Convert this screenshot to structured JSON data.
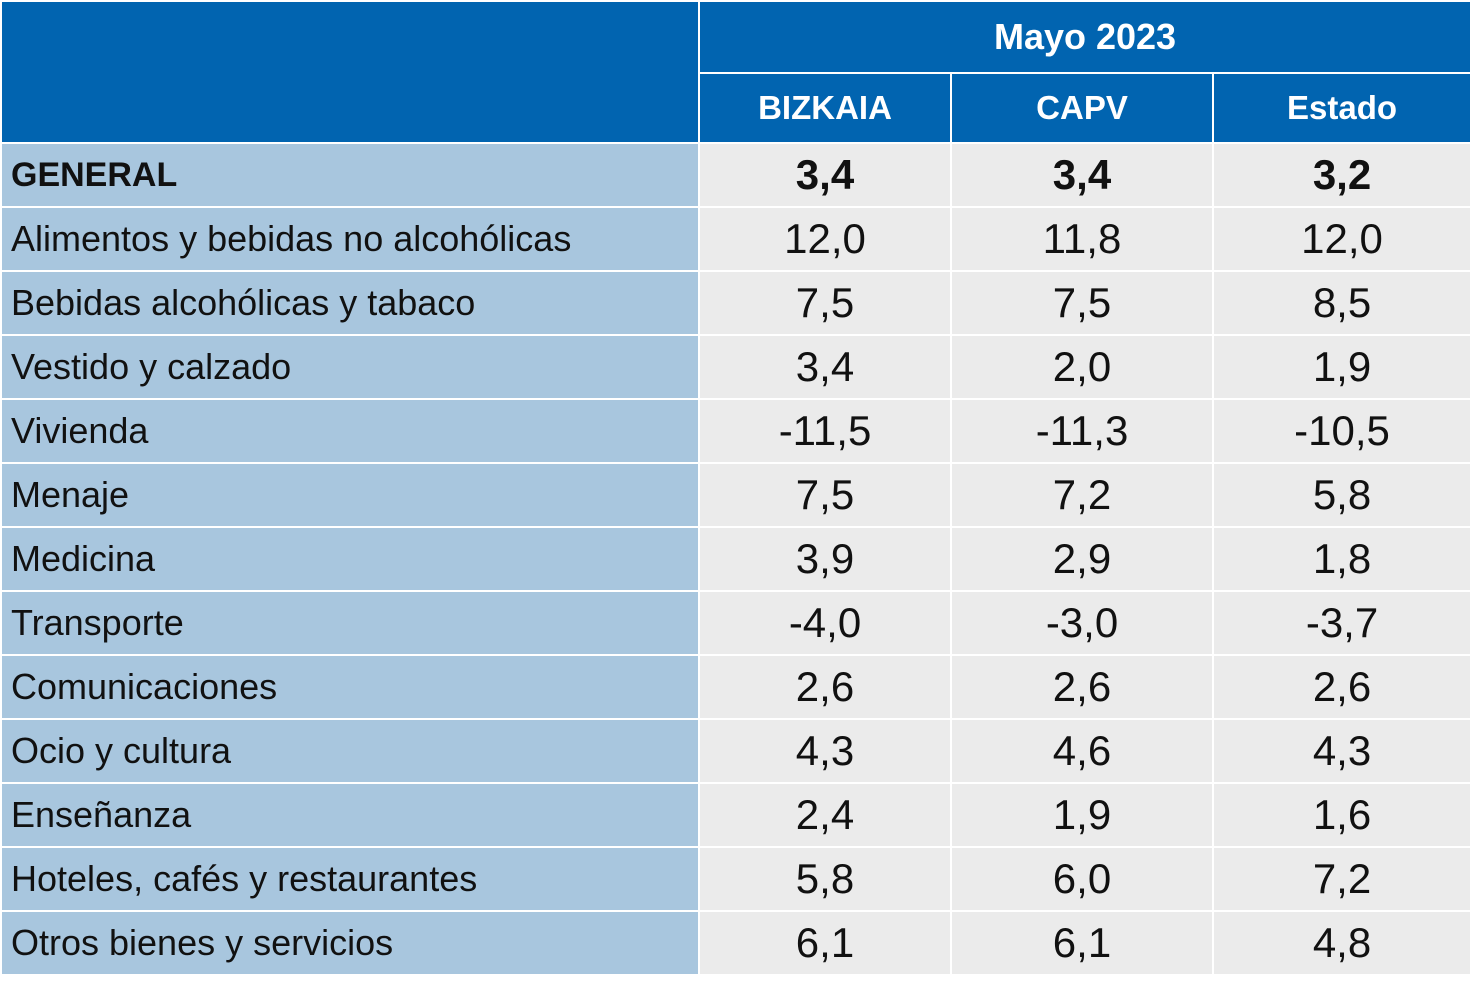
{
  "chart_data": {
    "type": "table",
    "period": "Mayo 2023",
    "columns": [
      "BIZKAIA",
      "CAPV",
      "Estado"
    ],
    "rows": [
      {
        "label": "GENERAL",
        "values": [
          "3,4",
          "3,4",
          "3,2"
        ]
      },
      {
        "label": "Alimentos y bebidas no alcohólicas",
        "values": [
          "12,0",
          "11,8",
          "12,0"
        ]
      },
      {
        "label": "Bebidas alcohólicas y tabaco",
        "values": [
          "7,5",
          "7,5",
          "8,5"
        ]
      },
      {
        "label": "Vestido y calzado",
        "values": [
          "3,4",
          "2,0",
          "1,9"
        ]
      },
      {
        "label": "Vivienda",
        "values": [
          "-11,5",
          "-11,3",
          "-10,5"
        ]
      },
      {
        "label": "Menaje",
        "values": [
          "7,5",
          "7,2",
          "5,8"
        ]
      },
      {
        "label": "Medicina",
        "values": [
          "3,9",
          "2,9",
          "1,8"
        ]
      },
      {
        "label": "Transporte",
        "values": [
          "-4,0",
          "-3,0",
          "-3,7"
        ]
      },
      {
        "label": "Comunicaciones",
        "values": [
          "2,6",
          "2,6",
          "2,6"
        ]
      },
      {
        "label": "Ocio y cultura",
        "values": [
          "4,3",
          "4,6",
          "4,3"
        ]
      },
      {
        "label": "Enseñanza",
        "values": [
          "2,4",
          "1,9",
          "1,6"
        ]
      },
      {
        "label": "Hoteles, cafés y restaurantes",
        "values": [
          "5,8",
          "6,0",
          "7,2"
        ]
      },
      {
        "label": "Otros bienes y servicios",
        "values": [
          "6,1",
          "6,1",
          "4,8"
        ]
      }
    ]
  },
  "colors": {
    "header_bg": "#0164b0",
    "header_text": "#ffffff",
    "label_bg": "#a8c6de",
    "value_bg": "#ebebeb",
    "grid_line": "#ffffff"
  }
}
